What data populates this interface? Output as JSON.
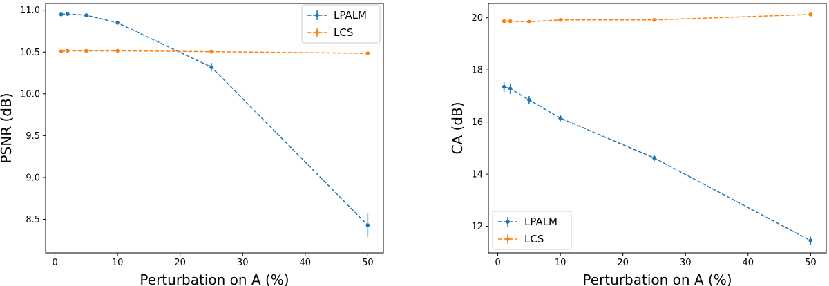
{
  "colors": {
    "LPALM": "#1f77b4",
    "LCS": "#ff7f0e"
  },
  "chart_data": [
    {
      "type": "line",
      "title": "",
      "xlabel": "Perturbation on A (%)",
      "ylabel": "PSNR (dB)",
      "xlim": [
        -1.5,
        52.5
      ],
      "ylim": [
        8.1,
        11.08
      ],
      "xticks": [
        0,
        10,
        20,
        30,
        40,
        50
      ],
      "yticks": [
        8.5,
        9.0,
        9.5,
        10.0,
        10.5,
        11.0
      ],
      "ytick_labels": [
        "8.5",
        "9.0",
        "9.5",
        "10.0",
        "10.5",
        "11.0"
      ],
      "legend_position": "top-right",
      "x": [
        1,
        2,
        5,
        10,
        25,
        50
      ],
      "series": [
        {
          "name": "LPALM",
          "values": [
            10.95,
            10.955,
            10.94,
            10.85,
            10.32,
            8.43
          ],
          "errors": [
            0.01,
            0.01,
            0.01,
            0.02,
            0.05,
            0.14
          ]
        },
        {
          "name": "LCS",
          "values": [
            10.51,
            10.515,
            10.515,
            10.515,
            10.505,
            10.485
          ],
          "errors": [
            0.01,
            0.01,
            0.01,
            0.01,
            0.01,
            0.01
          ]
        }
      ]
    },
    {
      "type": "line",
      "title": "",
      "xlabel": "Perturbation on A (%)",
      "ylabel": "CA (dB)",
      "xlim": [
        -1.5,
        52.5
      ],
      "ylim": [
        10.98,
        20.55
      ],
      "xticks": [
        0,
        10,
        20,
        30,
        40,
        50
      ],
      "yticks": [
        12,
        14,
        16,
        18,
        20
      ],
      "ytick_labels": [
        "12",
        "14",
        "16",
        "18",
        "20"
      ],
      "legend_position": "bottom-left",
      "x": [
        1,
        2,
        5,
        10,
        25,
        50
      ],
      "series": [
        {
          "name": "LPALM",
          "values": [
            17.35,
            17.28,
            16.85,
            16.15,
            14.62,
            11.45
          ],
          "errors": [
            0.2,
            0.2,
            0.15,
            0.12,
            0.12,
            0.15
          ]
        },
        {
          "name": "LCS",
          "values": [
            19.87,
            19.87,
            19.85,
            19.92,
            19.92,
            20.13
          ],
          "errors": [
            0.03,
            0.03,
            0.03,
            0.03,
            0.03,
            0.03
          ]
        }
      ]
    }
  ]
}
